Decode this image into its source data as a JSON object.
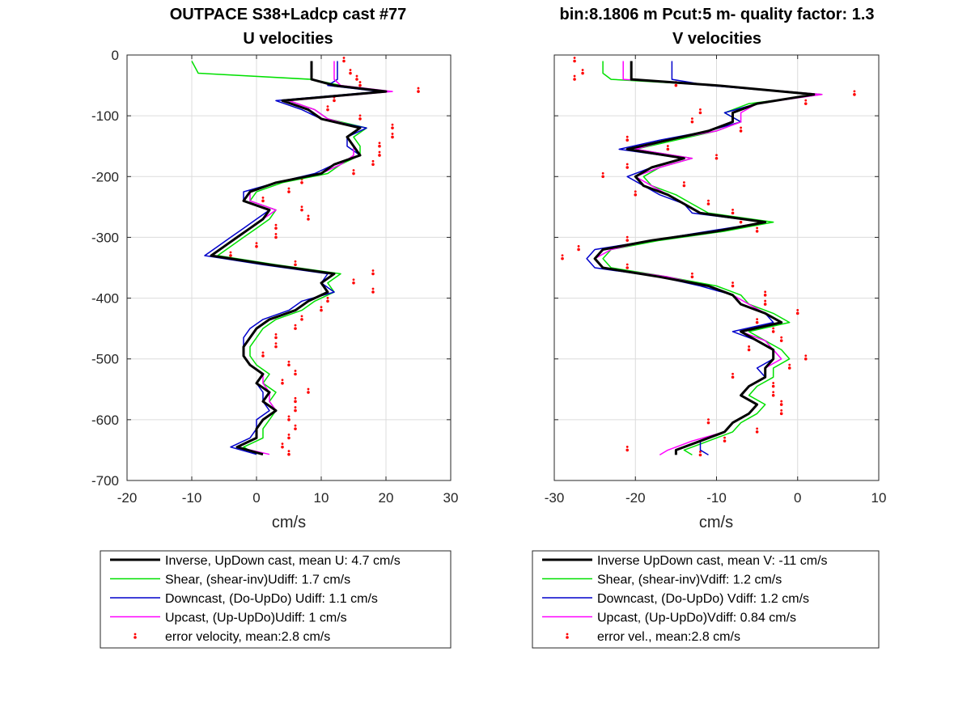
{
  "chart_data": [
    {
      "type": "line",
      "title": [
        "OUTPACE S38+Ladcp cast #77",
        "U velocities"
      ],
      "xlabel": "cm/s",
      "ylabel": "",
      "xlim": [
        -20,
        30
      ],
      "ylim": [
        -700,
        0
      ],
      "xticks": [
        -20,
        -10,
        0,
        10,
        20,
        30
      ],
      "yticks": [
        0,
        -100,
        -200,
        -300,
        -400,
        -500,
        -600,
        -700
      ],
      "grid": true,
      "legend_position": "below",
      "depth": [
        -10,
        -30,
        -40,
        -50,
        -60,
        -75,
        -90,
        -105,
        -120,
        -135,
        -150,
        -165,
        -180,
        -195,
        -210,
        -225,
        -240,
        -255,
        -270,
        -285,
        -300,
        -315,
        -330,
        -345,
        -360,
        -375,
        -390,
        -405,
        -420,
        -435,
        -450,
        -465,
        -480,
        -495,
        -510,
        -525,
        -540,
        -555,
        -570,
        -585,
        -600,
        -615,
        -630,
        -645,
        -657
      ],
      "series": [
        {
          "name": "Inverse, UpDown cast, mean U:  4.7 cm/s",
          "color": "#000000",
          "width": 3,
          "x": [
            8.5,
            8.5,
            8.5,
            12,
            20,
            4,
            8,
            10,
            16,
            14,
            15,
            16,
            12,
            10,
            3,
            -1,
            -2,
            2,
            1,
            -1,
            -3,
            -5,
            -7,
            2,
            12,
            10,
            11,
            8,
            6,
            2,
            0,
            -1,
            -2,
            -2,
            -1,
            1,
            0,
            2,
            1,
            3,
            1,
            0,
            0,
            -3,
            1
          ]
        },
        {
          "name": "Shear, (shear-inv)Udiff:  1.7 cm/s",
          "color": "#00e000",
          "width": 1.5,
          "x": [
            -10,
            -9,
            8.5,
            13,
            20,
            5,
            9,
            11,
            17,
            15,
            16,
            16,
            13,
            11,
            4,
            0,
            -1,
            3,
            2,
            0,
            -2,
            -4,
            -6,
            3,
            13,
            11,
            12,
            9,
            7,
            3,
            1,
            0,
            -1,
            -1,
            0,
            2,
            1,
            3,
            2,
            3,
            2,
            1,
            1,
            -2,
            0
          ]
        },
        {
          "name": "Downcast, (Do-UpDo) Udiff:  1.1 cm/s",
          "color": "#0000cc",
          "width": 1.5,
          "x": [
            12.5,
            12.5,
            12.5,
            11,
            19,
            3,
            7,
            10,
            17,
            14,
            14,
            16,
            12,
            9,
            3,
            -2,
            -2,
            2,
            0,
            -2,
            -4,
            -6,
            -8,
            1,
            11,
            10,
            12,
            7,
            5,
            1,
            -1,
            -2,
            -2,
            -2,
            -1,
            1,
            0,
            1,
            1,
            2,
            0,
            0,
            -1,
            -4,
            0
          ]
        },
        {
          "name": "Upcast, (Up-UpDo)Udiff:  1 cm/s",
          "color": "#ff00ff",
          "width": 1.5,
          "x": [
            12,
            12,
            12,
            13,
            21,
            5,
            9,
            11,
            16,
            14,
            15,
            15,
            13,
            10,
            3,
            -1,
            -1,
            3,
            1,
            -1,
            -3,
            -5,
            -7,
            2,
            12,
            10,
            11,
            8,
            6,
            2,
            0,
            -1,
            -2,
            -2,
            -1,
            1,
            1,
            2,
            2,
            3,
            1,
            0,
            0,
            -3,
            2
          ]
        }
      ],
      "error_series": {
        "name": "error velocity, mean:2.8 cm/s",
        "color": "#ff0000",
        "offset": [
          5,
          6,
          7,
          4,
          5,
          8,
          3,
          6,
          5,
          7,
          4,
          3,
          6,
          5,
          4,
          6,
          3,
          5,
          7,
          4,
          6,
          5,
          3,
          4,
          6,
          5,
          7,
          3,
          4,
          5,
          6,
          4,
          5,
          3,
          6,
          5,
          4,
          6,
          5,
          3,
          4,
          6,
          5,
          7,
          4
        ]
      }
    },
    {
      "type": "line",
      "title": [
        "bin:8.1806 m  Pcut:5 m- quality factor:  1.3",
        "V velocities"
      ],
      "xlabel": "cm/s",
      "ylabel": "",
      "xlim": [
        -30,
        10
      ],
      "ylim": [
        -700,
        0
      ],
      "xticks": [
        -30,
        -20,
        -10,
        0,
        10
      ],
      "yticks": [
        0,
        -100,
        -200,
        -300,
        -400,
        -500,
        -600,
        -700
      ],
      "grid": true,
      "legend_position": "below",
      "depth": [
        -10,
        -30,
        -40,
        -50,
        -65,
        -80,
        -95,
        -110,
        -125,
        -140,
        -155,
        -170,
        -185,
        -200,
        -215,
        -230,
        -245,
        -260,
        -275,
        -290,
        -305,
        -320,
        -335,
        -350,
        -365,
        -380,
        -395,
        -410,
        -425,
        -440,
        -455,
        -470,
        -485,
        -500,
        -515,
        -530,
        -545,
        -560,
        -575,
        -590,
        -605,
        -620,
        -635,
        -650,
        -658
      ],
      "series": [
        {
          "name": "Inverse UpDown cast, mean V:  -11 cm/s",
          "color": "#000000",
          "width": 3,
          "x": [
            -20.5,
            -20.5,
            -20.5,
            -10,
            2,
            -5,
            -8,
            -8,
            -11,
            -16,
            -21,
            -14,
            -18,
            -20,
            -19,
            -16,
            -14,
            -12,
            -4,
            -10,
            -18,
            -24,
            -25,
            -24,
            -17,
            -11,
            -8,
            -7,
            -4,
            -2,
            -7,
            -5,
            -3,
            -3,
            -4,
            -4,
            -6,
            -7,
            -5,
            -6,
            -8,
            -9,
            -12,
            -15,
            -15
          ]
        },
        {
          "name": "Shear, (shear-inv)Vdiff:  1.2 cm/s",
          "color": "#00e000",
          "width": 1.5,
          "x": [
            -24,
            -24,
            -23,
            -10,
            3,
            -6,
            -9,
            -7,
            -10,
            -15,
            -20,
            -13,
            -17,
            -19,
            -18,
            -15,
            -13,
            -11,
            -3,
            -9,
            -17,
            -23,
            -24,
            -23,
            -16,
            -10,
            -7,
            -6,
            -3,
            -1,
            -6,
            -4,
            -2,
            -1,
            -3,
            -3,
            -5,
            -6,
            -4,
            -5,
            -7,
            -8,
            -11,
            -14,
            -13
          ]
        },
        {
          "name": "Downcast, (Do-UpDo) Vdiff:  1.2 cm/s",
          "color": "#0000cc",
          "width": 1.5,
          "x": [
            -15.5,
            -15.5,
            -15.5,
            -11,
            2,
            -5,
            -9,
            -7,
            -11,
            -17,
            -22,
            -14,
            -18,
            -21,
            -19,
            -17,
            -14,
            -13,
            -4,
            -11,
            -18,
            -25,
            -26,
            -25,
            -17,
            -12,
            -8,
            -7,
            -4,
            -3,
            -8,
            -5,
            -3,
            -3,
            -5,
            -4,
            -6,
            -7,
            -5,
            -6,
            -8,
            -9,
            -12,
            -12,
            -11
          ]
        },
        {
          "name": "Upcast, (Up-UpDo)Vdiff:  0.84 cm/s",
          "color": "#ff00ff",
          "width": 1.5,
          "x": [
            -21.5,
            -21.5,
            -21.5,
            -10,
            3,
            -5,
            -7,
            -7,
            -10,
            -16,
            -20,
            -13,
            -17,
            -20,
            -18,
            -16,
            -14,
            -12,
            -4,
            -10,
            -18,
            -23,
            -25,
            -24,
            -16,
            -11,
            -8,
            -6,
            -4,
            -2,
            -7,
            -4,
            -3,
            -2,
            -4,
            -4,
            -6,
            -7,
            -5,
            -6,
            -8,
            -9,
            -13,
            -16,
            -17
          ]
        }
      ],
      "error_series": {
        "name": "error vel., mean:2.8 cm/s",
        "color": "#ff0000",
        "offset": [
          -7,
          -6,
          -7,
          -5,
          5,
          6,
          -4,
          -5,
          4,
          -5,
          5,
          4,
          -3,
          -4,
          5,
          -4,
          3,
          4,
          -3,
          5,
          -3,
          -3,
          -4,
          3,
          4,
          3,
          4,
          3,
          4,
          -3,
          4,
          3,
          -3,
          4,
          3,
          -4,
          3,
          4,
          3,
          4,
          -3,
          4,
          3,
          -6,
          3
        ]
      }
    }
  ]
}
